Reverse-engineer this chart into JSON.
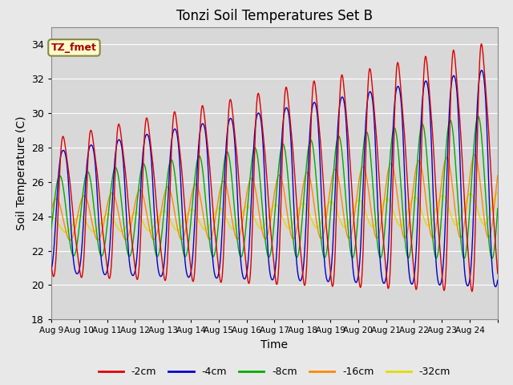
{
  "title": "Tonzi Soil Temperatures Set B",
  "xlabel": "Time",
  "ylabel": "Soil Temperature (C)",
  "ylim": [
    18,
    35
  ],
  "yticks": [
    18,
    20,
    22,
    24,
    26,
    28,
    30,
    32,
    34
  ],
  "background_color": "#e8e8e8",
  "plot_bg_color": "#d8d8d8",
  "series_colors": [
    "#dd0000",
    "#0000cc",
    "#00aa00",
    "#ff8800",
    "#dddd00"
  ],
  "series_labels": [
    "-2cm",
    "-4cm",
    "-8cm",
    "-16cm",
    "-32cm"
  ],
  "annotation_text": "TZ_fmet",
  "annotation_color": "#aa0000",
  "annotation_bg": "#ffffcc",
  "annotation_border": "#888844",
  "xtick_labels": [
    "Aug 9",
    "Aug 10",
    "Aug 11",
    "Aug 12",
    "Aug 13",
    "Aug 14",
    "Aug 15",
    "Aug 16",
    "Aug 17",
    "Aug 18",
    "Aug 19",
    "Aug 20",
    "Aug 21",
    "Aug 22",
    "Aug 23",
    "Aug 24"
  ],
  "num_days": 16,
  "points_per_day": 48,
  "figsize": [
    6.4,
    4.8
  ],
  "dpi": 100
}
